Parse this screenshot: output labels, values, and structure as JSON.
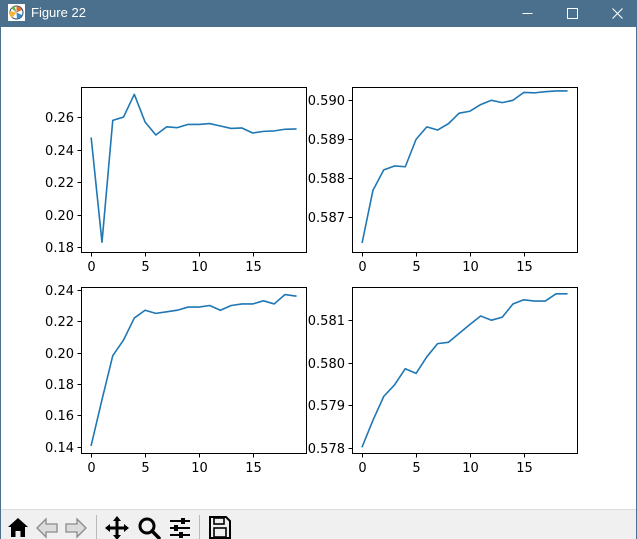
{
  "window": {
    "title": "Figure 22",
    "icons": {
      "app": "matplotlib-logo-icon",
      "minimize": "minimize-icon",
      "maximize": "maximize-icon",
      "close": "close-icon"
    },
    "colors": {
      "titlebar": "#4a708e",
      "line": "#1f77b4"
    }
  },
  "toolbar": {
    "buttons": [
      {
        "name": "home",
        "icon": "home-icon"
      },
      {
        "name": "back",
        "icon": "back-arrow-icon"
      },
      {
        "name": "forward",
        "icon": "forward-arrow-icon"
      },
      {
        "name": "pan",
        "icon": "move-icon"
      },
      {
        "name": "zoom",
        "icon": "zoom-icon"
      },
      {
        "name": "configure-subplots",
        "icon": "sliders-icon"
      },
      {
        "name": "save",
        "icon": "save-icon"
      }
    ]
  },
  "chart_data": [
    {
      "type": "line",
      "position": "top-left",
      "title": "",
      "xlabel": "",
      "ylabel": "",
      "x": [
        0,
        1,
        2,
        3,
        4,
        5,
        6,
        7,
        8,
        9,
        10,
        11,
        12,
        13,
        14,
        15,
        16,
        17,
        18,
        19
      ],
      "series": [
        {
          "values": [
            0.247,
            0.183,
            0.258,
            0.26,
            0.274,
            0.257,
            0.249,
            0.254,
            0.2535,
            0.2555,
            0.2555,
            0.256,
            0.2545,
            0.253,
            0.2533,
            0.2502,
            0.2512,
            0.2515,
            0.2525,
            0.2527
          ]
        }
      ],
      "xlim": [
        -0.95,
        19.95
      ],
      "ylim": [
        0.177,
        0.2785
      ],
      "xticks": [
        0,
        5,
        10,
        15
      ],
      "xtick_labels": [
        "0",
        "5",
        "10",
        "15"
      ],
      "yticks": [
        0.18,
        0.2,
        0.22,
        0.24,
        0.26
      ],
      "ytick_labels": [
        "0.18",
        "0.20",
        "0.22",
        "0.24",
        "0.26"
      ]
    },
    {
      "type": "line",
      "position": "top-right",
      "title": "",
      "xlabel": "",
      "ylabel": "",
      "x": [
        0,
        1,
        2,
        3,
        4,
        5,
        6,
        7,
        8,
        9,
        10,
        11,
        12,
        13,
        14,
        15,
        16,
        17,
        18,
        19
      ],
      "series": [
        {
          "values": [
            0.58635,
            0.58768,
            0.5882,
            0.5883,
            0.58828,
            0.58898,
            0.5893,
            0.58922,
            0.58938,
            0.58965,
            0.5897,
            0.58987,
            0.58998,
            0.58992,
            0.58998,
            0.59018,
            0.59017,
            0.5902,
            0.59022,
            0.59022
          ]
        }
      ],
      "xlim": [
        -0.95,
        19.95
      ],
      "ylim": [
        0.5861,
        0.59032
      ],
      "xticks": [
        0,
        5,
        10,
        15
      ],
      "xtick_labels": [
        "0",
        "5",
        "10",
        "15"
      ],
      "yticks": [
        0.587,
        0.588,
        0.589,
        0.59
      ],
      "ytick_labels": [
        "0.587",
        "0.588",
        "0.589",
        "0.590"
      ]
    },
    {
      "type": "line",
      "position": "bottom-left",
      "title": "",
      "xlabel": "",
      "ylabel": "",
      "x": [
        0,
        1,
        2,
        3,
        4,
        5,
        6,
        7,
        8,
        9,
        10,
        11,
        12,
        13,
        14,
        15,
        16,
        17,
        18,
        19
      ],
      "series": [
        {
          "values": [
            0.141,
            0.17,
            0.198,
            0.208,
            0.222,
            0.227,
            0.225,
            0.226,
            0.227,
            0.229,
            0.229,
            0.23,
            0.227,
            0.23,
            0.231,
            0.231,
            0.233,
            0.231,
            0.237,
            0.236
          ]
        }
      ],
      "xlim": [
        -0.95,
        19.95
      ],
      "ylim": [
        0.136,
        0.2418
      ],
      "xticks": [
        0,
        5,
        10,
        15
      ],
      "xtick_labels": [
        "0",
        "5",
        "10",
        "15"
      ],
      "yticks": [
        0.14,
        0.16,
        0.18,
        0.2,
        0.22,
        0.24
      ],
      "ytick_labels": [
        "0.14",
        "0.16",
        "0.18",
        "0.20",
        "0.22",
        "0.24"
      ]
    },
    {
      "type": "line",
      "position": "bottom-right",
      "title": "",
      "xlabel": "",
      "ylabel": "",
      "x": [
        0,
        1,
        2,
        3,
        4,
        5,
        6,
        7,
        8,
        9,
        10,
        11,
        12,
        13,
        14,
        15,
        16,
        17,
        18,
        19
      ],
      "series": [
        {
          "values": [
            0.57803,
            0.57865,
            0.57921,
            0.57948,
            0.57986,
            0.57975,
            0.58014,
            0.58045,
            0.58048,
            0.58069,
            0.5809,
            0.5811,
            0.581,
            0.58107,
            0.58138,
            0.58148,
            0.58145,
            0.58145,
            0.58162,
            0.58162
          ]
        }
      ],
      "xlim": [
        -0.95,
        19.95
      ],
      "ylim": [
        0.57788,
        0.58178
      ],
      "xticks": [
        0,
        5,
        10,
        15
      ],
      "xtick_labels": [
        "0",
        "5",
        "10",
        "15"
      ],
      "yticks": [
        0.578,
        0.579,
        0.58,
        0.581
      ],
      "ytick_labels": [
        "0.578",
        "0.579",
        "0.580",
        "0.581"
      ]
    }
  ]
}
